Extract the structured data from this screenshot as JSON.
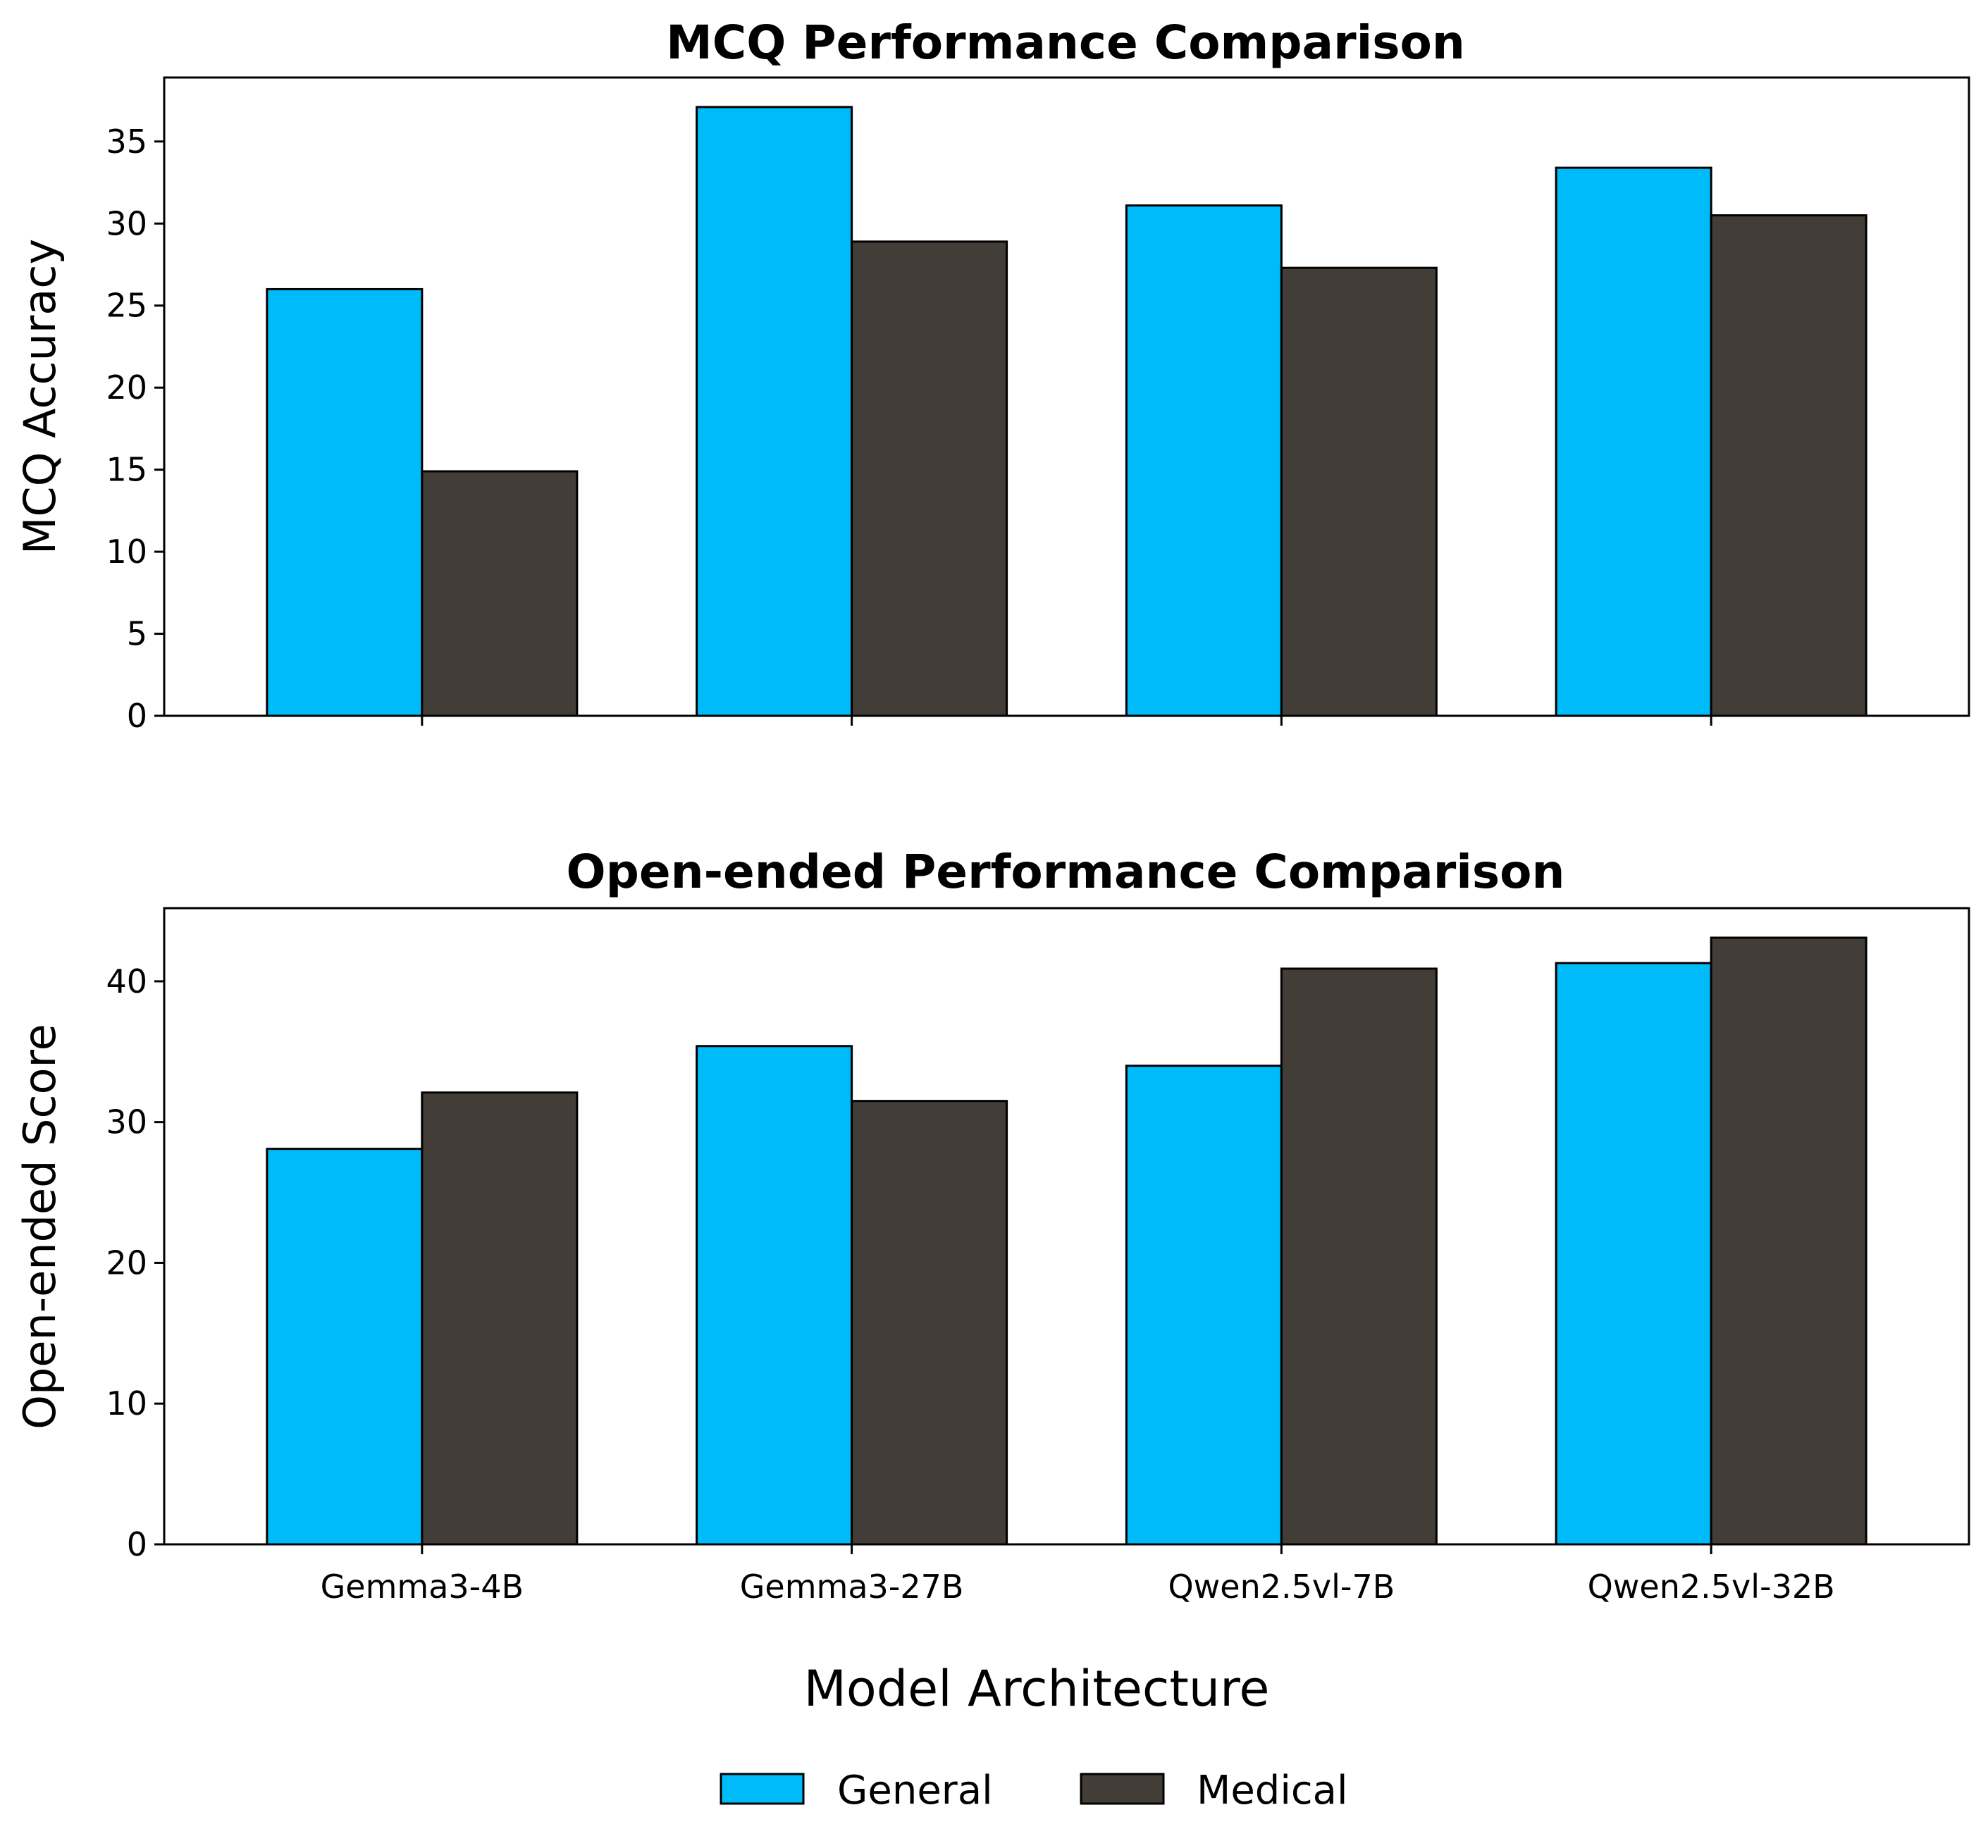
{
  "colors": {
    "general": "#00BBF9",
    "medical": "#433D37",
    "edge": "#000000",
    "background": "#FFFFFF"
  },
  "xlabel": "Model Architecture",
  "legend": {
    "items": [
      "General",
      "Medical"
    ],
    "placement": "bottom-center"
  },
  "chart_data": [
    {
      "type": "bar",
      "title": "MCQ Performance Comparison",
      "xlabel": "",
      "ylabel": "MCQ Accuracy",
      "ylim": [
        0,
        38.9
      ],
      "yticks": [
        0,
        5,
        10,
        15,
        20,
        25,
        30,
        35
      ],
      "categories": [
        "Gemma3-4B",
        "Gemma3-27B",
        "Qwen2.5vl-7B",
        "Qwen2.5vl-32B"
      ],
      "show_category_labels": false,
      "series": [
        {
          "name": "General",
          "values": [
            26.0,
            37.1,
            31.1,
            33.4
          ]
        },
        {
          "name": "Medical",
          "values": [
            14.9,
            28.9,
            27.3,
            30.5
          ]
        }
      ]
    },
    {
      "type": "bar",
      "title": "Open-ended Performance Comparison",
      "xlabel": "Model Architecture",
      "ylabel": "Open-ended Score",
      "ylim": [
        0,
        45.2
      ],
      "yticks": [
        0,
        10,
        20,
        30,
        40
      ],
      "categories": [
        "Gemma3-4B",
        "Gemma3-27B",
        "Qwen2.5vl-7B",
        "Qwen2.5vl-32B"
      ],
      "show_category_labels": true,
      "series": [
        {
          "name": "General",
          "values": [
            28.1,
            35.4,
            34.0,
            41.3
          ]
        },
        {
          "name": "Medical",
          "values": [
            32.1,
            31.5,
            40.9,
            43.1
          ]
        }
      ]
    }
  ]
}
